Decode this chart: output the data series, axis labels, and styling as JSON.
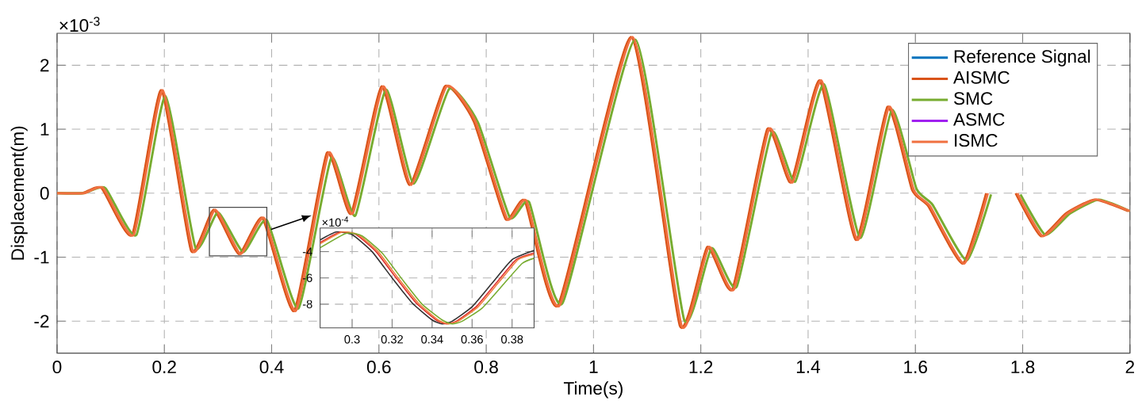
{
  "chart_data": [
    {
      "type": "line",
      "xlabel": "Time(s)",
      "ylabel": "Displacement(m)",
      "annotations": [
        "×10$^{-3}$"
      ],
      "x": [
        0,
        0.05,
        0.086,
        0.143,
        0.197,
        0.253,
        0.295,
        0.342,
        0.386,
        0.445,
        0.506,
        0.551,
        0.608,
        0.66,
        0.726,
        0.78,
        0.839,
        0.875,
        0.937,
        1.073,
        1.164,
        1.215,
        1.262,
        1.327,
        1.371,
        1.425,
        1.492,
        1.551,
        1.597,
        1.627,
        1.691,
        1.735,
        1.76,
        1.79,
        1.837,
        1.883,
        1.937,
        2.0
      ],
      "series": [
        {
          "name": "Reference Signal",
          "color": "#0072bd",
          "values": [
            null,
            null,
            null,
            null,
            null,
            null,
            null,
            null,
            null,
            null,
            null,
            null,
            null,
            null,
            null,
            null,
            null,
            null,
            null,
            null,
            null,
            null,
            null,
            null,
            null,
            null,
            null,
            null,
            null,
            null,
            null,
            null,
            null,
            null,
            null,
            null,
            null,
            null
          ]
        },
        {
          "name": "AISMC",
          "color": "#d95319",
          "x": [
            0,
            0.047,
            0.083,
            0.14,
            0.194,
            0.25,
            0.292,
            0.339,
            0.383,
            0.442,
            0.503,
            0.548,
            0.605,
            0.657,
            0.723,
            0.777,
            0.836,
            0.872,
            0.934,
            1.07,
            1.161,
            1.212,
            1.259,
            1.324,
            1.368,
            1.422,
            1.489,
            1.548,
            1.594,
            1.624,
            1.688,
            1.732,
            1.757,
            1.787,
            1.834,
            1.88,
            1.934,
            1.997
          ],
          "values": [
            0,
            0,
            0.08,
            -0.65,
            1.61,
            -0.9,
            -0.26,
            -0.95,
            -0.39,
            -1.84,
            0.63,
            -0.32,
            1.67,
            0.13,
            1.67,
            1.12,
            -0.4,
            -0.12,
            -1.75,
            2.44,
            -2.07,
            -0.84,
            -1.5,
            1.0,
            0.17,
            1.76,
            -0.73,
            1.35,
            0.05,
            -0.2,
            -1.1,
            0.0,
            null,
            0.0,
            -0.67,
            -0.32,
            -0.1,
            -0.28
          ]
        },
        {
          "name": "SMC",
          "color": "#77ac30",
          "x": [
            0,
            0.05,
            0.09,
            0.148,
            0.202,
            0.258,
            0.3,
            0.347,
            0.391,
            0.45,
            0.511,
            0.556,
            0.613,
            0.665,
            0.731,
            0.785,
            0.844,
            0.88,
            0.942,
            1.078,
            1.169,
            1.22,
            1.267,
            1.332,
            1.376,
            1.43,
            1.497,
            1.556,
            1.602,
            1.632,
            1.696,
            1.741,
            1.765,
            1.796,
            1.842,
            1.888,
            1.942,
            2.0
          ],
          "values": [
            0,
            0,
            0.08,
            -0.65,
            1.52,
            -0.85,
            -0.3,
            -0.92,
            -0.42,
            -1.8,
            0.55,
            -0.35,
            1.62,
            0.15,
            1.63,
            1.1,
            -0.38,
            -0.14,
            -1.72,
            2.4,
            -1.98,
            -0.86,
            -1.46,
            0.95,
            0.18,
            1.7,
            -0.7,
            1.3,
            0.07,
            -0.18,
            -1.05,
            -0.02,
            null,
            -0.02,
            -0.65,
            -0.32,
            -0.1,
            -0.28
          ]
        },
        {
          "name": "ASMC",
          "color": "#a020f0",
          "values": [
            null,
            null,
            null,
            null,
            null,
            null,
            null,
            null,
            null,
            null,
            null,
            null,
            null,
            null,
            null,
            null,
            null,
            null,
            null,
            null,
            null,
            null,
            null,
            null,
            null,
            null,
            null,
            null,
            null,
            null,
            null,
            null,
            null,
            null,
            null,
            null,
            null,
            null
          ]
        },
        {
          "name": "ISMC",
          "color": "#f07040",
          "values": [
            0,
            0,
            0.08,
            -0.65,
            1.61,
            -0.9,
            -0.26,
            -0.95,
            -0.39,
            -1.84,
            0.63,
            -0.32,
            1.67,
            0.13,
            1.67,
            1.12,
            -0.4,
            -0.12,
            -1.75,
            2.44,
            -2.07,
            -0.84,
            -1.5,
            1.0,
            0.17,
            1.76,
            -0.73,
            1.35,
            0.05,
            -0.2,
            -1.1,
            0.0,
            null,
            0.0,
            -0.67,
            -0.32,
            -0.1,
            -0.28
          ]
        }
      ],
      "xlim": [
        0,
        2
      ],
      "ylim": [
        -2.5,
        2.5
      ],
      "xticks": [
        0,
        0.2,
        0.4,
        0.6,
        0.8,
        1,
        1.2,
        1.4,
        1.6,
        1.8,
        2
      ],
      "yticks": [
        -2,
        -1,
        0,
        1,
        2
      ],
      "grid": true,
      "legend": "top right",
      "marker": "none"
    },
    {
      "type": "line",
      "annotations": [
        "×10$^{-4}$"
      ],
      "series": [
        {
          "color": "#333333",
          "x": [
            0.284,
            0.292,
            0.3,
            0.31,
            0.32,
            0.33,
            0.34,
            0.345,
            0.35,
            0.36,
            0.37,
            0.38,
            0.391
          ],
          "values": [
            -3.1,
            -2.5,
            -2.7,
            -4.0,
            -6.0,
            -7.9,
            -9.2,
            -9.5,
            -9.3,
            -8.2,
            -6.4,
            -4.6,
            -3.9
          ]
        },
        {
          "color": "#e03030",
          "x": [
            0.284,
            0.294,
            0.302,
            0.312,
            0.322,
            0.332,
            0.342,
            0.347,
            0.352,
            0.362,
            0.372,
            0.382,
            0.391
          ],
          "values": [
            -3.3,
            -2.5,
            -2.7,
            -4.0,
            -6.0,
            -7.9,
            -9.2,
            -9.5,
            -9.3,
            -8.2,
            -6.4,
            -4.6,
            -4.1
          ]
        },
        {
          "color": "#f08040",
          "x": [
            0.284,
            0.295,
            0.303,
            0.313,
            0.323,
            0.333,
            0.343,
            0.348,
            0.353,
            0.363,
            0.373,
            0.383,
            0.391
          ],
          "values": [
            -3.4,
            -2.5,
            -2.7,
            -4.0,
            -6.0,
            -7.9,
            -9.2,
            -9.5,
            -9.3,
            -8.2,
            -6.4,
            -4.6,
            -4.2
          ]
        },
        {
          "color": "#77ac30",
          "x": [
            0.284,
            0.297,
            0.305,
            0.315,
            0.325,
            0.335,
            0.345,
            0.35,
            0.355,
            0.365,
            0.375,
            0.385,
            0.391
          ],
          "values": [
            -3.7,
            -2.6,
            -2.8,
            -4.1,
            -6.1,
            -8.0,
            -9.2,
            -9.5,
            -9.3,
            -8.3,
            -6.6,
            -4.9,
            -4.5
          ]
        }
      ],
      "xlim": [
        0.284,
        0.391
      ],
      "ylim": [
        -9.8,
        -2.2
      ],
      "xticks": [
        0.3,
        0.32,
        0.34,
        0.36,
        0.38
      ],
      "yticks": [
        -8,
        -6,
        -4
      ],
      "grid": true,
      "marker": "none"
    }
  ]
}
